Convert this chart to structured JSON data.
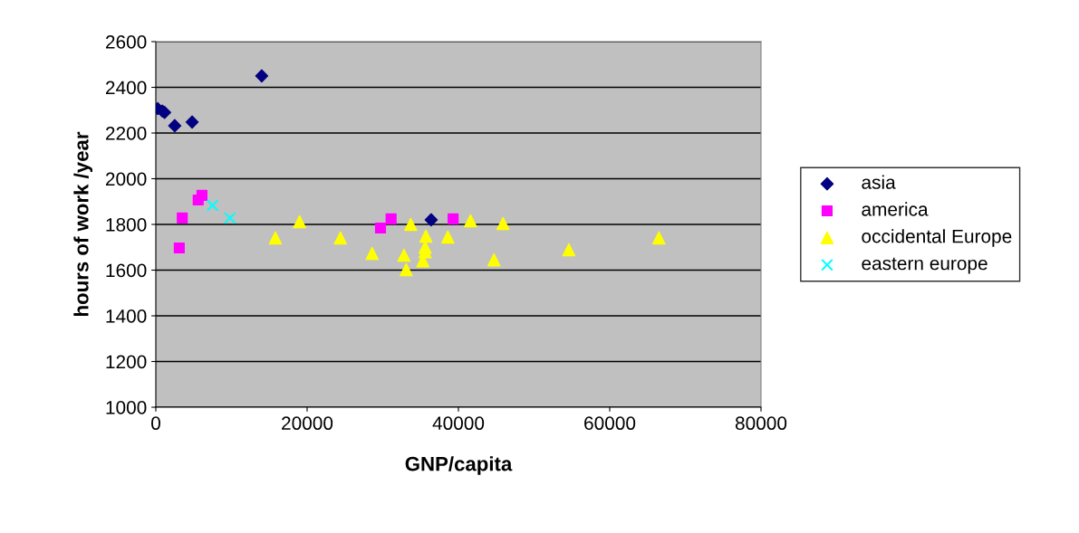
{
  "chart_data": {
    "type": "scatter",
    "xlabel": "GNP/capita",
    "ylabel": "hours of work /year",
    "xlim": [
      0,
      80000
    ],
    "xticks": [
      0,
      20000,
      40000,
      60000,
      80000
    ],
    "ylim": [
      1000,
      2600
    ],
    "yticks": [
      1000,
      1200,
      1400,
      1600,
      1800,
      2000,
      2200,
      2400,
      2600
    ],
    "grid": "y",
    "legend": "right",
    "series": [
      {
        "name": "asia",
        "color": "#000080",
        "marker": "diamond",
        "x": [
          240,
          870,
          1160,
          2500,
          4800,
          14000,
          36400
        ],
        "values": [
          2307,
          2296,
          2290,
          2232,
          2248,
          2450,
          1820
        ]
      },
      {
        "name": "america",
        "color": "#ff00ff",
        "marker": "square",
        "x": [
          3100,
          3500,
          5600,
          6100,
          29700,
          31100,
          39300
        ],
        "values": [
          1697,
          1828,
          1907,
          1927,
          1784,
          1824,
          1824
        ]
      },
      {
        "name": "occidental Europe",
        "color": "#ffff00",
        "marker": "triangle",
        "x": [
          15800,
          19000,
          24400,
          28600,
          32800,
          33100,
          33700,
          35700,
          35600,
          35600,
          35300,
          38600,
          41600,
          44700,
          45900,
          54600,
          66500
        ],
        "values": [
          1741,
          1812,
          1741,
          1673,
          1665,
          1602,
          1800,
          1749,
          1700,
          1680,
          1641,
          1745,
          1816,
          1645,
          1804,
          1689,
          1741
        ]
      },
      {
        "name": "eastern europe",
        "color": "#00ffff",
        "marker": "cross",
        "x": [
          7500,
          9800
        ],
        "values": [
          1883,
          1828
        ]
      }
    ]
  }
}
